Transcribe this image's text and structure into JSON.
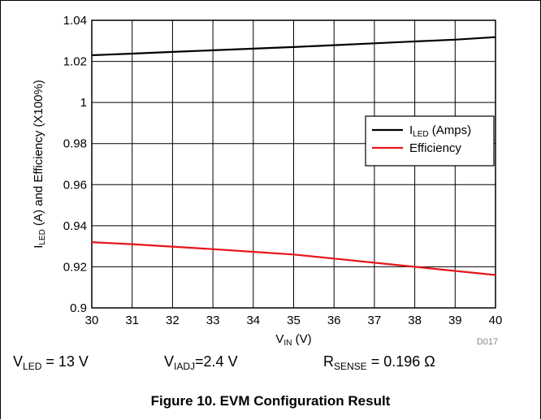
{
  "chart_data": {
    "type": "line",
    "ylabel": {
      "main": "I",
      "sub": "LED",
      "rest": " (A) and Efficiency (X100%)"
    },
    "xlabel": {
      "main": "V",
      "sub": "IN",
      "rest": " (V)"
    },
    "xlim": [
      30,
      40
    ],
    "ylim": [
      0.9,
      1.04
    ],
    "xticks": [
      "30",
      "31",
      "32",
      "33",
      "34",
      "35",
      "36",
      "37",
      "38",
      "39",
      "40"
    ],
    "yticks": [
      "0.9",
      "0.92",
      "0.94",
      "0.96",
      "0.98",
      "1",
      "1.02",
      "1.04"
    ],
    "grid": true,
    "legend_position": "right",
    "watermark": "D017",
    "series": [
      {
        "name": "I",
        "name_sub": "LED",
        "name_rest": " (Amps)",
        "color": "#000000",
        "x": [
          30,
          31,
          32,
          33,
          34,
          35,
          36,
          37,
          38,
          39,
          40
        ],
        "values": [
          1.023,
          1.0238,
          1.0246,
          1.0254,
          1.0262,
          1.027,
          1.0279,
          1.0288,
          1.0297,
          1.0306,
          1.0318
        ]
      },
      {
        "name": "Efficiency",
        "name_sub": "",
        "name_rest": "",
        "color": "#e8141b",
        "x": [
          30,
          31,
          32,
          33,
          34,
          35,
          36,
          37,
          38,
          39,
          40
        ],
        "values": [
          0.932,
          0.931,
          0.9298,
          0.9286,
          0.9273,
          0.926,
          0.924,
          0.922,
          0.92,
          0.918,
          0.916
        ]
      }
    ]
  },
  "conditions": [
    {
      "main": "V",
      "sub": "LED",
      "rest": " = 13 V"
    },
    {
      "main": "V",
      "sub": "IADJ",
      "rest": "=2.4 V"
    },
    {
      "main": "R",
      "sub": "SENSE",
      "rest": " = 0.196 Ω"
    }
  ],
  "caption": "Figure 10. EVM Configuration Result"
}
